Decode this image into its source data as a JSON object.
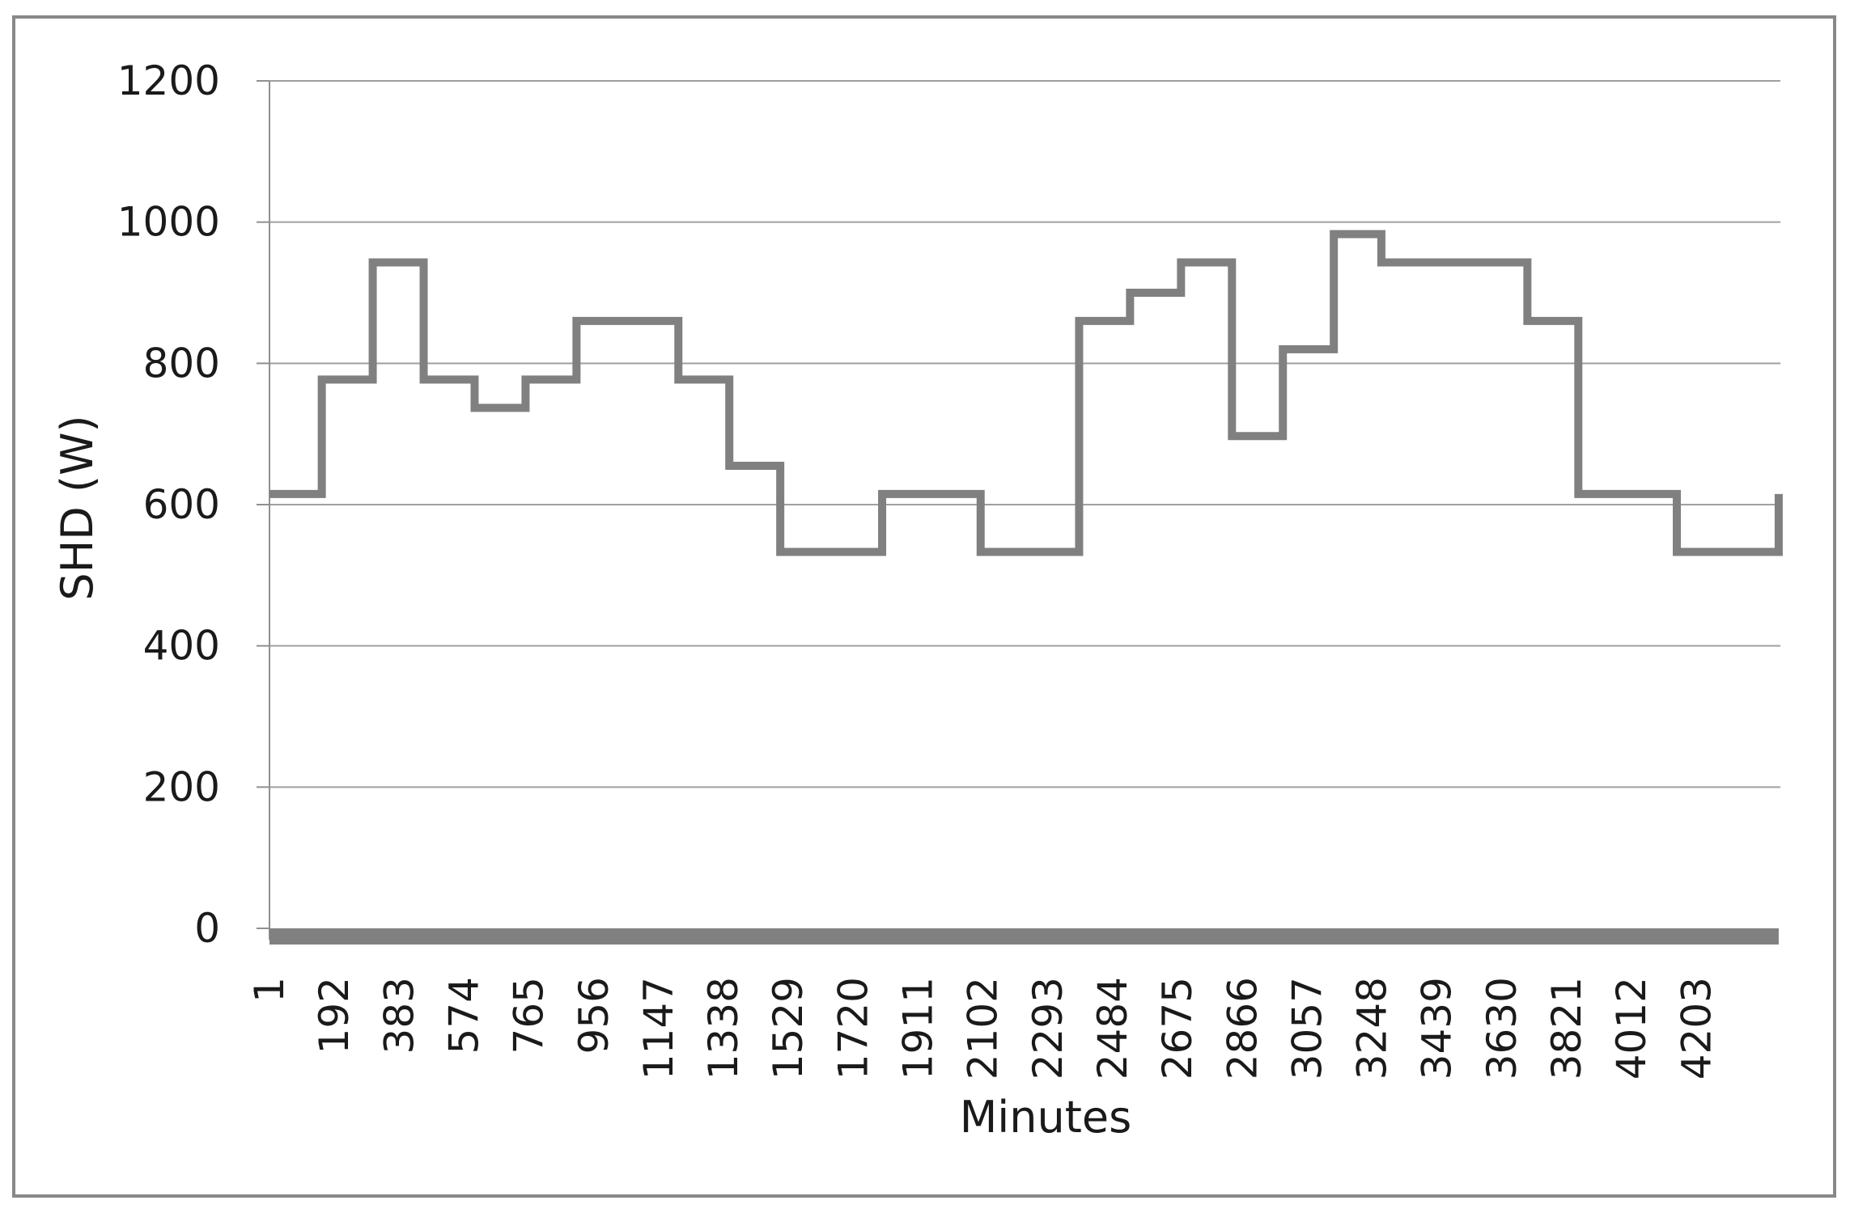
{
  "chart_data": {
    "type": "line",
    "step": true,
    "xlabel": "Minutes",
    "ylabel": "SHD (W)",
    "ylim": [
      0,
      1200
    ],
    "yticks": [
      0,
      200,
      400,
      600,
      800,
      1000,
      1200
    ],
    "xlim": [
      1,
      4450
    ],
    "xticks": [
      1,
      192,
      383,
      574,
      765,
      956,
      1147,
      1338,
      1529,
      1720,
      1911,
      2102,
      2293,
      2484,
      2675,
      2866,
      3057,
      3248,
      3439,
      3630,
      3821,
      4012,
      4203
    ],
    "grid": "horizontal",
    "legend": "none",
    "colors": {
      "series": "#808080",
      "grid": "#a0a0a0",
      "axis": "#909090",
      "frame": "#888888"
    },
    "series": [
      {
        "x": [
          1,
          155,
          305,
          455,
          605,
          755,
          905,
          1205,
          1355,
          1505,
          1805,
          2095,
          2385,
          2535,
          2685,
          2835,
          2985,
          3135,
          3275,
          3705,
          3855,
          4145,
          4445
        ],
        "values": [
          615,
          777,
          943,
          777,
          737,
          777,
          860,
          777,
          655,
          533,
          615,
          533,
          860,
          900,
          943,
          697,
          820,
          983,
          943,
          860,
          615,
          533,
          615
        ]
      },
      {
        "x": [
          1,
          4445
        ],
        "values": [
          0,
          0
        ]
      }
    ]
  }
}
